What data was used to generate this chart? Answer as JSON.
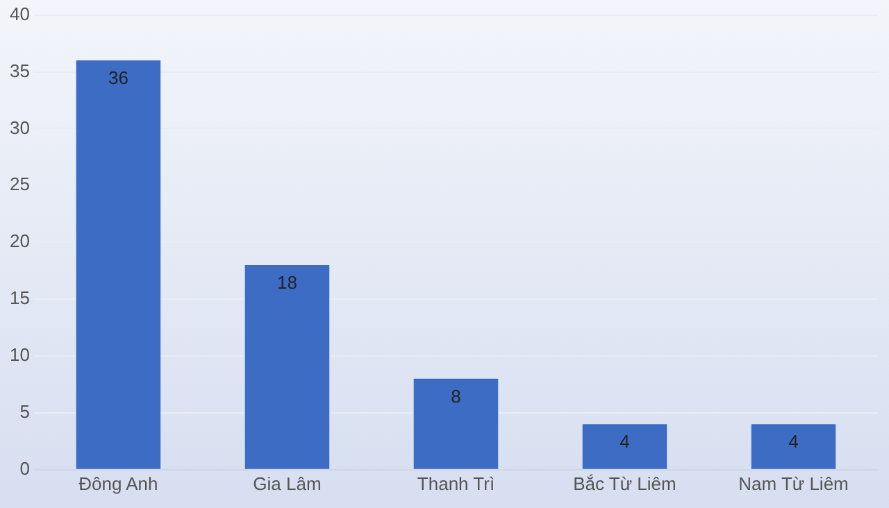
{
  "chart_data": {
    "type": "bar",
    "categories": [
      "Đông Anh",
      "Gia Lâm",
      "Thanh Trì",
      "Bắc Từ Liêm",
      "Nam Từ Liêm"
    ],
    "values": [
      36,
      18,
      8,
      4,
      4
    ],
    "color": "#3d6cc4",
    "ylim": [
      0,
      40
    ],
    "yticks": [
      0,
      5,
      10,
      15,
      20,
      25,
      30,
      35,
      40
    ],
    "grid": "y",
    "data_labels": true
  }
}
